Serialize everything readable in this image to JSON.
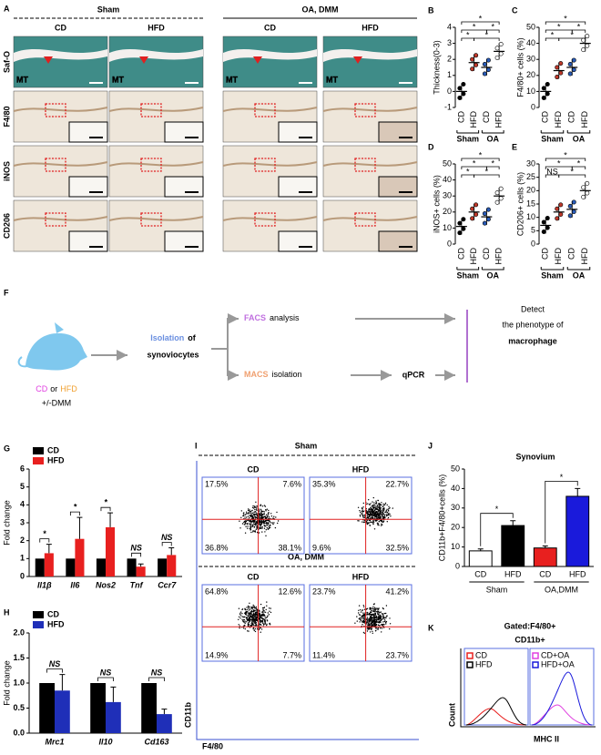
{
  "panel_a": {
    "label": "A",
    "groups": [
      "Sham",
      "OA, DMM"
    ],
    "columns": [
      "CD",
      "HFD",
      "CD",
      "HFD"
    ],
    "rows": [
      "Saf-O",
      "F4/80",
      "iNOS",
      "CD206"
    ],
    "marker": "MT"
  },
  "panel_b": {
    "label": "B",
    "ylabel": "Thickness(0-3)",
    "ylim": [
      -1,
      4
    ],
    "yticks": [
      -1,
      0,
      1,
      2,
      3,
      4
    ],
    "categories": [
      "CD",
      "HFD",
      "CD",
      "HFD"
    ],
    "groups": [
      "Sham",
      "OA"
    ],
    "values": [
      0,
      1.8,
      1.5,
      2.5
    ],
    "colors": [
      "#000000",
      "#c0392b",
      "#2a5cb8",
      "#ffffff"
    ],
    "annotations": [
      "*",
      "*",
      "*",
      "*",
      "*"
    ]
  },
  "panel_c": {
    "label": "C",
    "ylabel": "F4/80+ cells (%)",
    "ylim": [
      0,
      50
    ],
    "yticks": [
      0,
      10,
      20,
      30,
      40,
      50
    ],
    "categories": [
      "CD",
      "HFD",
      "CD",
      "HFD"
    ],
    "groups": [
      "Sham",
      "OA"
    ],
    "values": [
      10,
      23,
      25,
      40
    ],
    "colors": [
      "#000000",
      "#c0392b",
      "#2a5cb8",
      "#ffffff"
    ],
    "annotations": [
      "*",
      "*",
      "*",
      "*",
      "*"
    ]
  },
  "panel_d": {
    "label": "D",
    "ylabel": "iNOS+ cells (%)",
    "ylim": [
      0,
      50
    ],
    "yticks": [
      0,
      10,
      20,
      30,
      40,
      50
    ],
    "categories": [
      "CD",
      "HFD",
      "CD",
      "HFD"
    ],
    "groups": [
      "Sham",
      "OA"
    ],
    "values": [
      11,
      20,
      17,
      30
    ],
    "colors": [
      "#000000",
      "#c0392b",
      "#2a5cb8",
      "#ffffff"
    ],
    "annotations": [
      "*",
      "*",
      "*",
      "*",
      "*"
    ]
  },
  "panel_e": {
    "label": "E",
    "ylabel": "CD206+ cells (%)",
    "ylim": [
      0,
      30
    ],
    "yticks": [
      0,
      5,
      10,
      15,
      20,
      25,
      30
    ],
    "categories": [
      "CD",
      "HFD",
      "CD",
      "HFD"
    ],
    "groups": [
      "Sham",
      "OA"
    ],
    "values": [
      7,
      12,
      13,
      20
    ],
    "colors": [
      "#000000",
      "#c0392b",
      "#2a5cb8",
      "#ffffff"
    ],
    "annotations": [
      "*",
      "*",
      "*",
      "NS",
      "*"
    ]
  },
  "panel_f": {
    "label": "F",
    "source": [
      "CD",
      "or",
      "HFD"
    ],
    "treatment": "+/-DMM",
    "isolation": [
      "Isolation",
      "of",
      "synoviocytes"
    ],
    "facs": [
      "FACS",
      "analysis"
    ],
    "macs": [
      "MACS",
      "isolation"
    ],
    "qpcr": "qPCR",
    "detect": [
      "Detect",
      "the phenotype of",
      "macrophage"
    ]
  },
  "panel_g": {
    "label": "G",
    "ylabel": "Fold change",
    "ylim": [
      0,
      6
    ],
    "yticks": [
      0,
      1,
      2,
      3,
      4,
      5,
      6
    ],
    "categories": [
      "Il1β",
      "Il6",
      "Nos2",
      "Tnf",
      "Ccr7"
    ],
    "series": [
      {
        "name": "CD",
        "color": "#000000",
        "values": [
          1,
          1,
          1,
          1,
          1
        ]
      },
      {
        "name": "HFD",
        "color": "#e8201f",
        "values": [
          1.3,
          2.1,
          2.75,
          0.55,
          1.2
        ],
        "errors": [
          0.5,
          1.2,
          0.8,
          0.15,
          0.4
        ]
      }
    ],
    "annotations": [
      "*",
      "*",
      "*",
      "NS",
      "NS"
    ]
  },
  "panel_h": {
    "label": "H",
    "ylabel": "Fold change",
    "ylim": [
      0,
      2
    ],
    "yticks": [
      {
        "value": 0,
        "label": "0.0"
      },
      {
        "value": 0.5,
        "label": "0.5"
      },
      {
        "value": 1,
        "label": "1.0"
      },
      {
        "value": 1.5,
        "label": "1.5"
      },
      {
        "value": 2,
        "label": "2.0"
      }
    ],
    "categories": [
      "Mrc1",
      "Il10",
      "Cd163"
    ],
    "series": [
      {
        "name": "CD",
        "color": "#000000",
        "values": [
          1,
          1,
          1
        ]
      },
      {
        "name": "HFD",
        "color": "#1f2fb8",
        "values": [
          0.85,
          0.62,
          0.38
        ],
        "errors": [
          0.32,
          0.3,
          0.1
        ]
      }
    ],
    "annotations": [
      "NS",
      "NS",
      "NS"
    ]
  },
  "panel_i": {
    "label": "I",
    "groups": [
      "Sham",
      "OA, DMM"
    ],
    "plots": [
      {
        "name": "CD",
        "quadrants": [
          "17.5%",
          "7.6%",
          "36.8%",
          "38.1%"
        ]
      },
      {
        "name": "HFD",
        "quadrants": [
          "35.3%",
          "22.7%",
          "9.6%",
          "32.5%"
        ]
      },
      {
        "name": "CD",
        "quadrants": [
          "64.8%",
          "12.6%",
          "14.9%",
          "7.7%"
        ]
      },
      {
        "name": "HFD",
        "quadrants": [
          "23.7%",
          "41.2%",
          "11.4%",
          "23.7%"
        ]
      }
    ],
    "ylabel": "CD11b",
    "xlabel": "F4/80"
  },
  "panel_j": {
    "label": "J",
    "title": "Synovium",
    "ylabel": "CD11b+F4/80+cells (%)",
    "ylim": [
      0,
      50
    ],
    "yticks": [
      0,
      10,
      20,
      30,
      40,
      50
    ],
    "categories": [
      "CD",
      "HFD",
      "CD",
      "HFD"
    ],
    "groups": [
      "Sham",
      "OA,DMM"
    ],
    "values": [
      8,
      21,
      9.5,
      36
    ],
    "errors": [
      1,
      2.5,
      1,
      4
    ],
    "colors": [
      "#ffffff",
      "#000000",
      "#e8201f",
      "#1a1adb"
    ],
    "annotations": [
      "*",
      "*"
    ]
  },
  "panel_k": {
    "label": "K",
    "title": [
      "Gated:F4/80+",
      "CD11b+"
    ],
    "legend": [
      {
        "name": "CD",
        "color": "#e8201f"
      },
      {
        "name": "HFD",
        "color": "#000000"
      },
      {
        "name": "CD+OA",
        "color": "#e040e0"
      },
      {
        "name": "HFD+OA",
        "color": "#1a1adb"
      }
    ],
    "ylabel": "Count",
    "xlabel": "MHC II"
  }
}
